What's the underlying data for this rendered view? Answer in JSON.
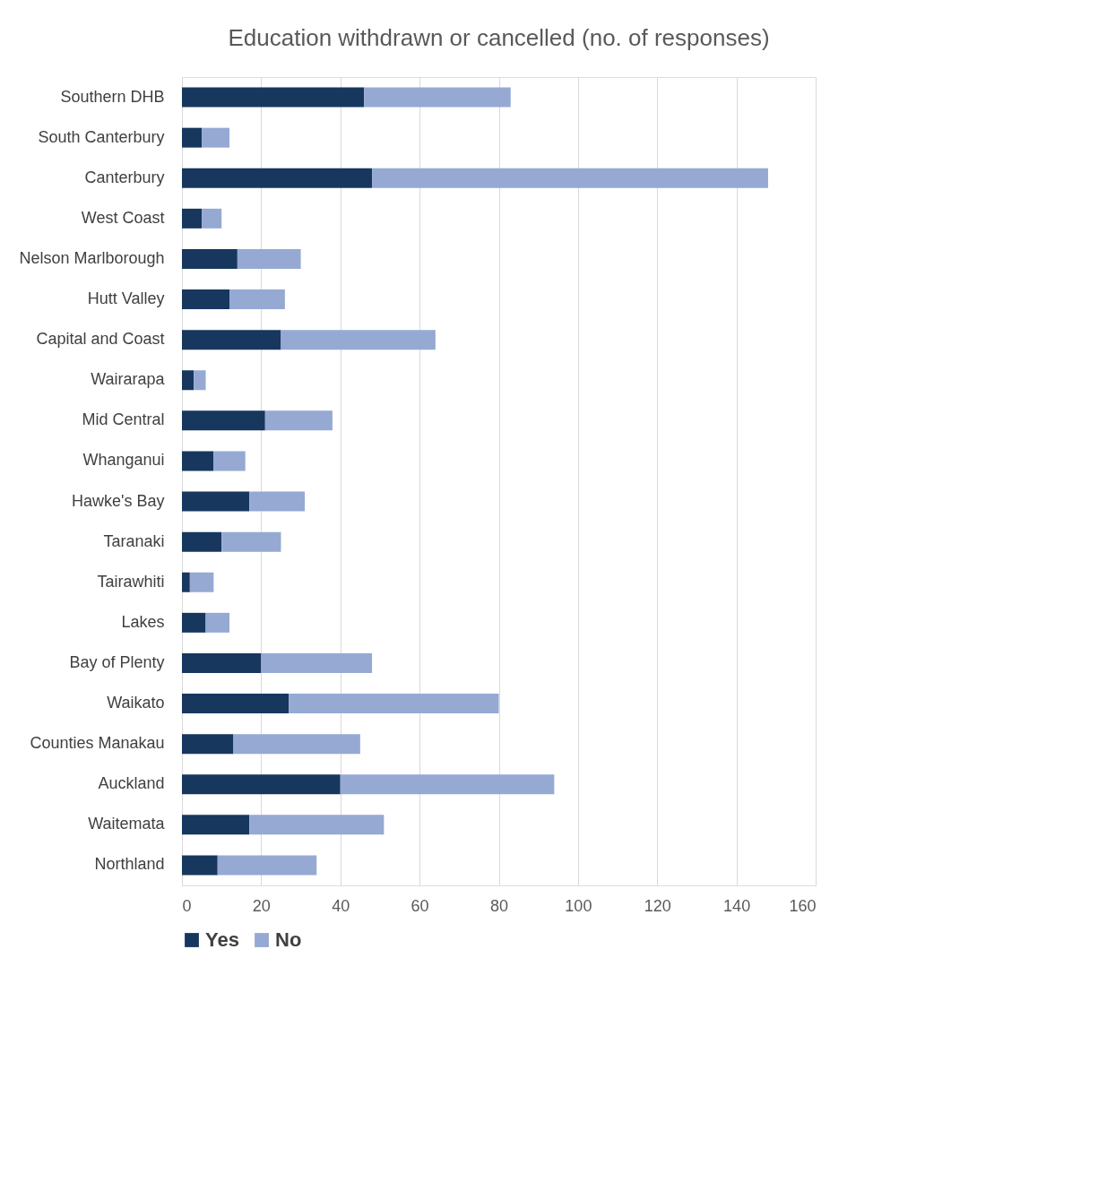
{
  "chart_data": {
    "type": "bar",
    "orientation": "horizontal",
    "stacked": true,
    "title": "Education withdrawn or cancelled  (no. of responses)",
    "categories": [
      "Southern DHB",
      "South Canterbury",
      "Canterbury",
      "West Coast",
      "Nelson Marlborough",
      "Hutt Valley",
      "Capital and Coast",
      "Wairarapa",
      "Mid Central",
      "Whanganui",
      "Hawke's Bay",
      "Taranaki",
      "Tairawhiti",
      "Lakes",
      "Bay of Plenty",
      "Waikato",
      "Counties Manakau",
      "Auckland",
      "Waitemata",
      "Northland"
    ],
    "series": [
      {
        "name": "Yes",
        "color": "#17375e",
        "values": [
          46,
          5,
          48,
          5,
          14,
          12,
          25,
          3,
          21,
          8,
          17,
          10,
          2,
          6,
          20,
          27,
          13,
          40,
          17,
          9
        ]
      },
      {
        "name": "No",
        "color": "#95a9d3",
        "values": [
          37,
          7,
          100,
          5,
          16,
          14,
          39,
          3,
          17,
          8,
          14,
          15,
          6,
          6,
          28,
          53,
          32,
          54,
          34,
          25
        ]
      }
    ],
    "xlim": [
      0,
      160
    ],
    "xticks": [
      0,
      20,
      40,
      60,
      80,
      100,
      120,
      140,
      160
    ],
    "grid": "x",
    "legend": "bottom"
  }
}
